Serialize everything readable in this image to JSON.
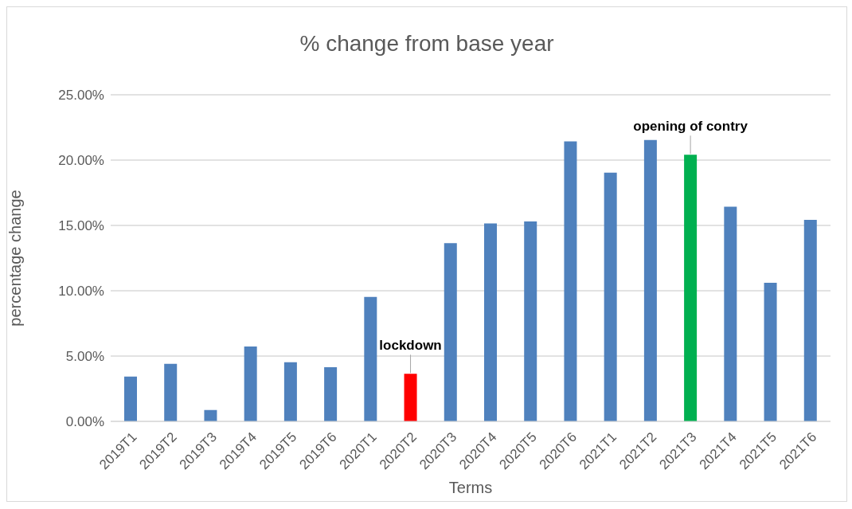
{
  "chart_data": {
    "type": "bar",
    "title": "% change from base year",
    "xlabel": "Terms",
    "ylabel": "percentage change",
    "categories": [
      "2019T1",
      "2019T2",
      "2019T3",
      "2019T4",
      "2019T5",
      "2019T6",
      "2020T1",
      "2020T2",
      "2020T3",
      "2020T4",
      "2020T5",
      "2020T6",
      "2021T1",
      "2021T2",
      "2021T3",
      "2021T4",
      "2021T5",
      "2021T6"
    ],
    "values": [
      3.43,
      4.41,
      0.87,
      5.73,
      4.53,
      4.15,
      9.53,
      3.64,
      13.64,
      15.16,
      15.3,
      21.44,
      19.04,
      21.54,
      20.41,
      16.44,
      10.61,
      15.43
    ],
    "colors": [
      "#4f81bd",
      "#4f81bd",
      "#4f81bd",
      "#4f81bd",
      "#4f81bd",
      "#4f81bd",
      "#4f81bd",
      "#ff0000",
      "#4f81bd",
      "#4f81bd",
      "#4f81bd",
      "#4f81bd",
      "#4f81bd",
      "#4f81bd",
      "#00b050",
      "#4f81bd",
      "#4f81bd",
      "#4f81bd"
    ],
    "ylim": [
      0,
      25
    ],
    "yticks": [
      {
        "value": 0,
        "label": "0.00%"
      },
      {
        "value": 5,
        "label": "5.00%"
      },
      {
        "value": 10,
        "label": "10.00%"
      },
      {
        "value": 15,
        "label": "15.00%"
      },
      {
        "value": 20,
        "label": "20.00%"
      },
      {
        "value": 25,
        "label": "25.00%"
      }
    ],
    "grid": "y",
    "legend": false,
    "annotations": [
      {
        "text": "lockdown",
        "x": "2020T2",
        "y": 3.64
      },
      {
        "text": "opening of contry",
        "x": "2021T3",
        "y": 20.41
      }
    ]
  }
}
